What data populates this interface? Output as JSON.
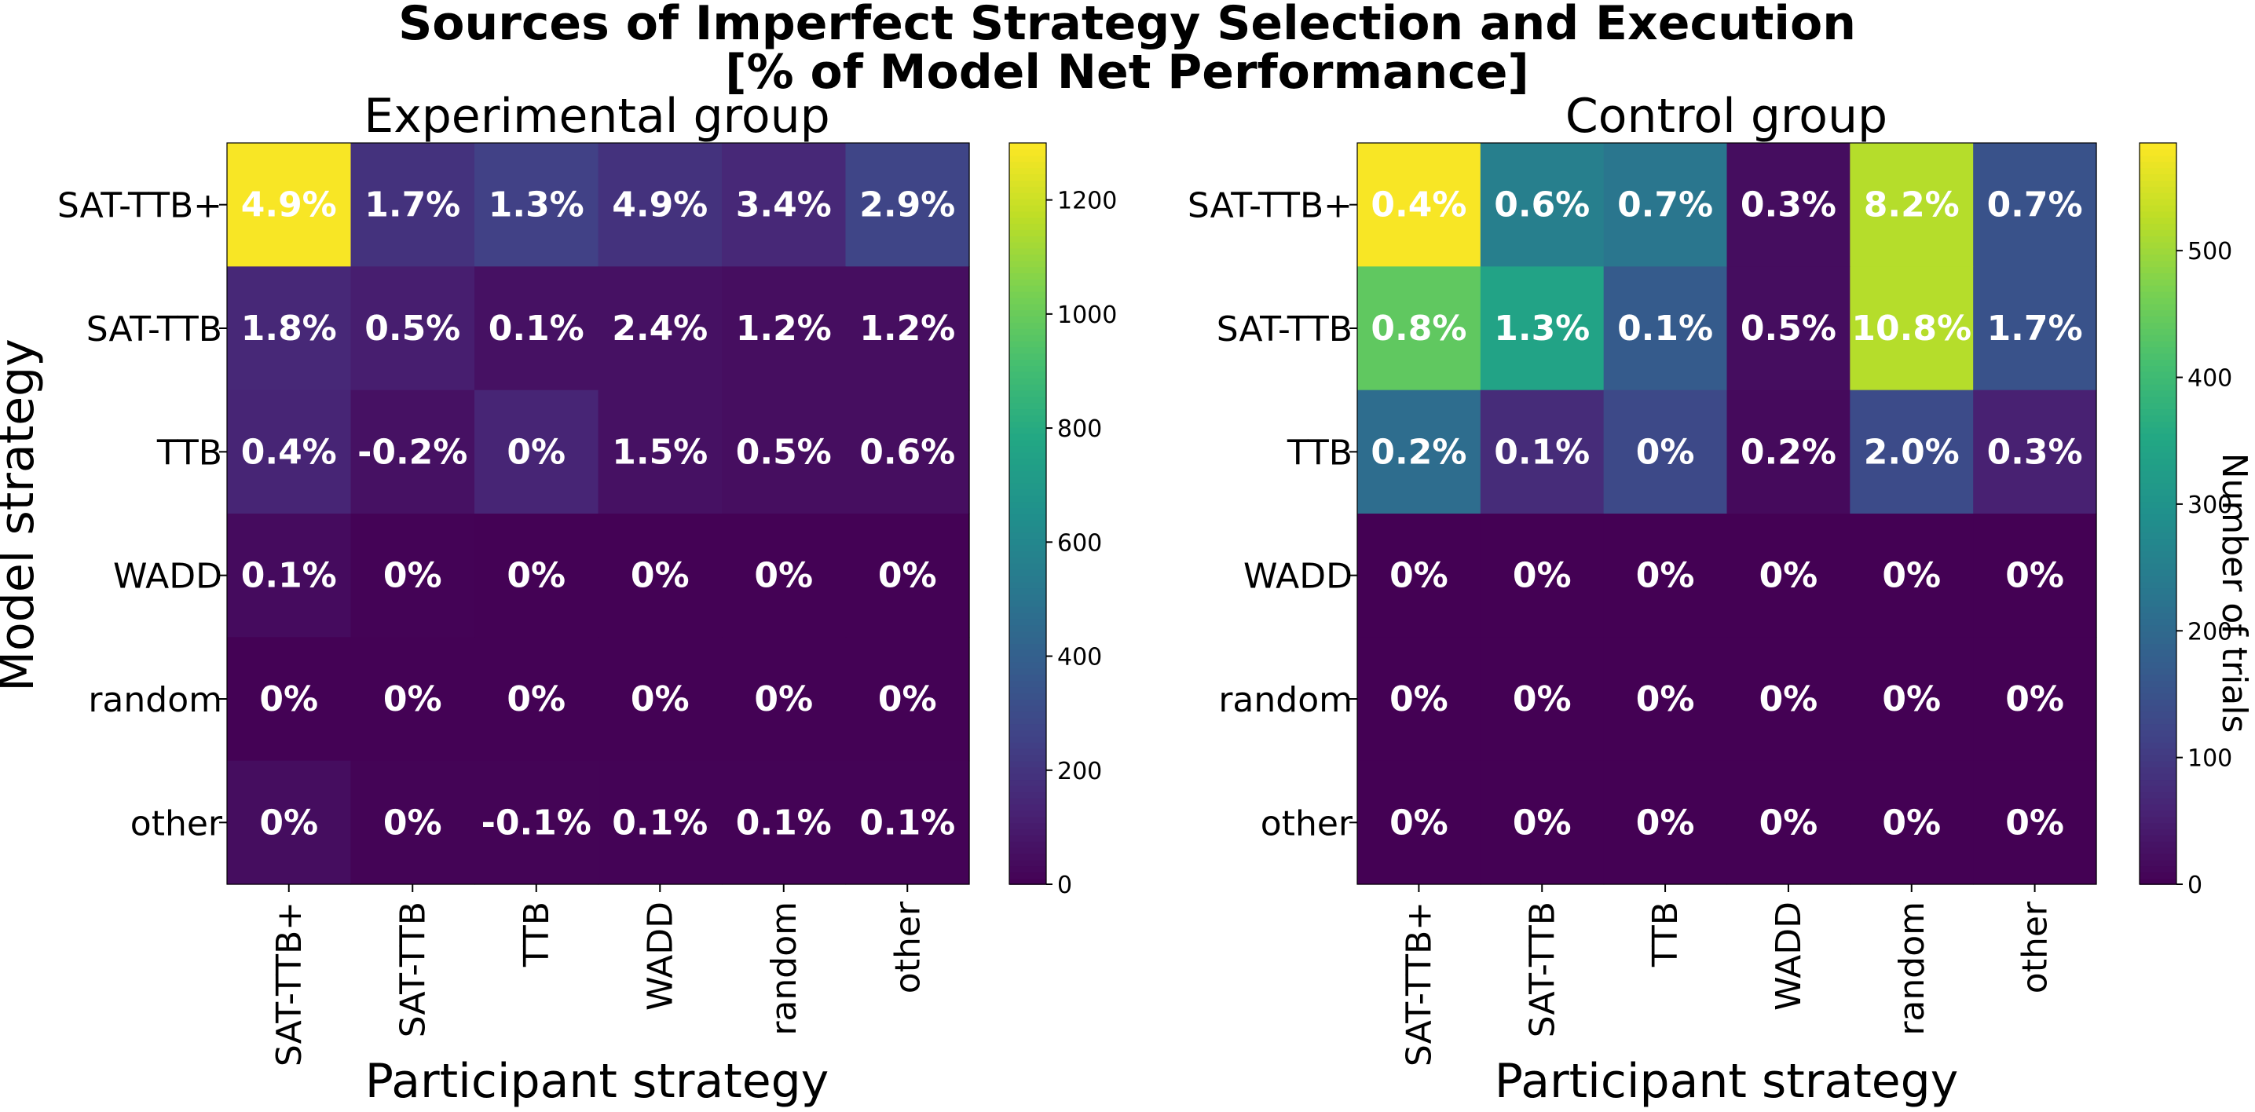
{
  "figure": {
    "title_line1": "Sources of Imperfect Strategy Selection and Execution",
    "title_line2": "[% of Model Net Performance]"
  },
  "chart_data": [
    {
      "type": "heatmap",
      "title": "Experimental group",
      "xlabel": "Participant strategy",
      "ylabel": "Model strategy",
      "x_categories": [
        "SAT-TTB+",
        "SAT-TTB",
        "TTB",
        "WADD",
        "random",
        "other"
      ],
      "y_categories": [
        "SAT-TTB+",
        "SAT-TTB",
        "TTB",
        "WADD",
        "random",
        "other"
      ],
      "values": [
        [
          1290,
          190,
          250,
          190,
          150,
          270
        ],
        [
          150,
          110,
          60,
          60,
          50,
          50
        ],
        [
          140,
          60,
          140,
          60,
          50,
          50
        ],
        [
          40,
          8,
          5,
          5,
          5,
          5
        ],
        [
          5,
          4,
          3,
          3,
          3,
          3
        ],
        [
          45,
          10,
          10,
          8,
          8,
          8
        ]
      ],
      "labels": [
        [
          "4.9%",
          "1.7%",
          "1.3%",
          "4.9%",
          "3.4%",
          "2.9%"
        ],
        [
          "1.8%",
          "0.5%",
          "0.1%",
          "2.4%",
          "1.2%",
          "1.2%"
        ],
        [
          "0.4%",
          "-0.2%",
          "0%",
          "1.5%",
          "0.5%",
          "0.6%"
        ],
        [
          "0.1%",
          "0%",
          "0%",
          "0%",
          "0%",
          "0%"
        ],
        [
          "0%",
          "0%",
          "0%",
          "0%",
          "0%",
          "0%"
        ],
        [
          "0%",
          "0%",
          "-0.1%",
          "0.1%",
          "0.1%",
          "0.1%"
        ]
      ],
      "colorbar": {
        "min": 0,
        "max": 1300,
        "ticks": [
          0,
          200,
          400,
          600,
          800,
          1000,
          1200
        ],
        "label": ""
      }
    },
    {
      "type": "heatmap",
      "title": "Control group",
      "xlabel": "Participant strategy",
      "ylabel": "",
      "x_categories": [
        "SAT-TTB+",
        "SAT-TTB",
        "TTB",
        "WADD",
        "random",
        "other"
      ],
      "y_categories": [
        "SAT-TTB+",
        "SAT-TTB",
        "TTB",
        "WADD",
        "random",
        "other"
      ],
      "values": [
        [
          580,
          250,
          230,
          20,
          520,
          150
        ],
        [
          440,
          340,
          170,
          20,
          520,
          150
        ],
        [
          210,
          75,
          130,
          15,
          135,
          55
        ],
        [
          0,
          0,
          0,
          0,
          0,
          0
        ],
        [
          0,
          0,
          0,
          0,
          0,
          0
        ],
        [
          0,
          0,
          0,
          0,
          0,
          0
        ]
      ],
      "labels": [
        [
          "0.4%",
          "0.6%",
          "0.7%",
          "0.3%",
          "8.2%",
          "0.7%"
        ],
        [
          "0.8%",
          "1.3%",
          "0.1%",
          "0.5%",
          "10.8%",
          "1.7%"
        ],
        [
          "0.2%",
          "0.1%",
          "0%",
          "0.2%",
          "2.0%",
          "0.3%"
        ],
        [
          "0%",
          "0%",
          "0%",
          "0%",
          "0%",
          "0%"
        ],
        [
          "0%",
          "0%",
          "0%",
          "0%",
          "0%",
          "0%"
        ],
        [
          "0%",
          "0%",
          "0%",
          "0%",
          "0%",
          "0%"
        ]
      ],
      "colorbar": {
        "min": 0,
        "max": 585,
        "ticks": [
          0,
          100,
          200,
          300,
          400,
          500
        ],
        "label": "Number of trials"
      }
    }
  ]
}
